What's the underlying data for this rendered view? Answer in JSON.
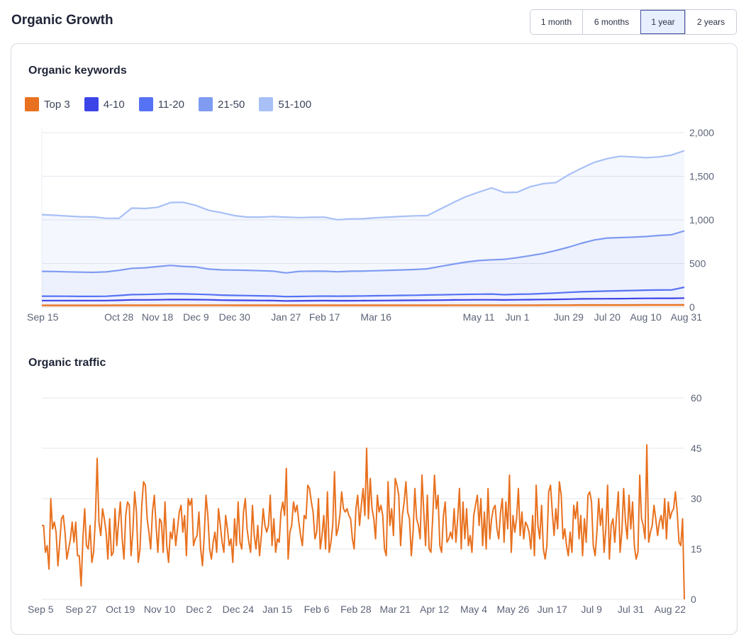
{
  "header": {
    "title": "Organic Growth"
  },
  "range": {
    "options": [
      "1 month",
      "6 months",
      "1 year",
      "2 years"
    ],
    "selected": "1 year"
  },
  "keywords": {
    "title": "Organic keywords",
    "legend": [
      {
        "label": "Top 3",
        "color": "#e8711f"
      },
      {
        "label": "4-10",
        "color": "#3c44e8"
      },
      {
        "label": "11-20",
        "color": "#5672f4"
      },
      {
        "label": "21-50",
        "color": "#7f9bf2"
      },
      {
        "label": "51-100",
        "color": "#a8c0f6"
      }
    ]
  },
  "traffic": {
    "title": "Organic traffic"
  },
  "colors": {
    "accent": "#e8711f",
    "selected_bg": "#e8efff",
    "grid": "#e4e7ee"
  },
  "chart_data": [
    {
      "type": "area",
      "title": "Organic keywords",
      "stacked": true,
      "y_axis_position": "right",
      "ylim": [
        0,
        2000
      ],
      "yticks": [
        0,
        500,
        1000,
        1500,
        2000
      ],
      "ytick_labels": [
        "0",
        "500",
        "1,000",
        "1,500",
        "2,000"
      ],
      "xtick_labels": [
        "Sep 15",
        "Oct 28",
        "Nov 18",
        "Dec 9",
        "Dec 30",
        "Jan 27",
        "Feb 17",
        "Mar 16",
        "May 11",
        "Jun 1",
        "Jun 29",
        "Jul 20",
        "Aug 10",
        "Aug 31"
      ],
      "xtick_index": [
        0,
        6,
        9,
        12,
        15,
        19,
        22,
        26,
        34,
        37,
        41,
        44,
        47,
        50
      ],
      "legend_position": "top-left",
      "grid": true,
      "x_count": 51,
      "series": [
        {
          "name": "Top 3",
          "color": "#e8711f",
          "values": [
            20,
            20,
            20,
            20,
            20,
            20,
            21,
            21,
            21,
            21,
            22,
            22,
            22,
            22,
            22,
            21,
            21,
            21,
            21,
            21,
            21,
            21,
            21,
            21,
            21,
            21,
            21,
            21,
            21,
            21,
            21,
            21,
            22,
            22,
            22,
            22,
            22,
            22,
            22,
            23,
            23,
            23,
            24,
            24,
            24,
            24,
            24,
            25,
            25,
            25,
            25
          ]
        },
        {
          "name": "4-10",
          "color": "#3c44e8",
          "values": [
            55,
            55,
            55,
            55,
            55,
            55,
            57,
            62,
            62,
            63,
            65,
            64,
            63,
            62,
            58,
            57,
            56,
            55,
            54,
            50,
            51,
            52,
            53,
            52,
            52,
            53,
            54,
            55,
            56,
            57,
            58,
            59,
            60,
            61,
            62,
            62,
            60,
            62,
            63,
            64,
            66,
            68,
            70,
            71,
            72,
            73,
            74,
            75,
            76,
            76,
            78
          ]
        },
        {
          "name": "11-20",
          "color": "#5672f4",
          "values": [
            50,
            50,
            49,
            48,
            48,
            49,
            55,
            60,
            62,
            65,
            66,
            65,
            63,
            60,
            57,
            56,
            55,
            53,
            52,
            49,
            50,
            51,
            52,
            52,
            53,
            54,
            55,
            56,
            57,
            58,
            60,
            61,
            62,
            63,
            64,
            66,
            60,
            63,
            65,
            68,
            72,
            78,
            82,
            85,
            88,
            90,
            92,
            94,
            95,
            96,
            125
          ]
        },
        {
          "name": "21-50",
          "color": "#7f9bf2",
          "values": [
            285,
            283,
            280,
            278,
            275,
            280,
            288,
            302,
            305,
            315,
            325,
            316,
            312,
            292,
            290,
            290,
            290,
            288,
            285,
            272,
            287,
            288,
            285,
            280,
            285,
            285,
            287,
            290,
            292,
            295,
            300,
            325,
            348,
            370,
            385,
            392,
            406,
            420,
            440,
            460,
            488,
            518,
            556,
            590,
            608,
            610,
            612,
            615,
            625,
            632,
            645
          ]
        },
        {
          "name": "51-100",
          "color": "#a8c0f6",
          "values": [
            650,
            645,
            640,
            635,
            635,
            615,
            597,
            690,
            680,
            680,
            720,
            735,
            705,
            673,
            655,
            625,
            610,
            615,
            626,
            640,
            617,
            617,
            620,
            597,
            600,
            600,
            607,
            610,
            614,
            615,
            610,
            657,
            705,
            750,
            785,
            825,
            765,
            750,
            790,
            800,
            779,
            830,
            860,
            890,
            910,
            932,
            920,
            904,
            900,
            914,
            920
          ]
        }
      ]
    },
    {
      "type": "line",
      "title": "Organic traffic",
      "y_axis_position": "right",
      "ylim": [
        0,
        60
      ],
      "yticks": [
        0,
        15,
        30,
        45,
        60
      ],
      "xtick_labels": [
        "Sep 5",
        "Sep 27",
        "Oct 19",
        "Nov 10",
        "Dec 2",
        "Dec 24",
        "Jan 15",
        "Feb 6",
        "Feb 28",
        "Mar 21",
        "Apr 12",
        "May 4",
        "May 26",
        "Jun 17",
        "Jul 9",
        "Jul 31",
        "Aug 22"
      ],
      "xtick_index": [
        0,
        22,
        44,
        66,
        88,
        110,
        132,
        154,
        176,
        198,
        220,
        242,
        264,
        286,
        308,
        330,
        352
      ],
      "grid": true,
      "series": [
        {
          "name": "Organic traffic",
          "color": "#e8711f",
          "values": [
            22,
            22,
            14,
            16,
            9,
            30,
            21,
            23,
            20,
            10,
            17,
            24,
            25,
            20,
            12,
            15,
            18,
            23,
            17,
            23,
            13,
            13,
            4,
            18,
            27,
            16,
            15,
            22,
            11,
            14,
            24,
            42,
            23,
            19,
            27,
            24,
            20,
            12,
            24,
            13,
            14,
            27,
            16,
            23,
            29,
            18,
            12,
            25,
            29,
            28,
            13,
            20,
            32,
            26,
            11,
            15,
            28,
            35,
            34,
            24,
            20,
            15,
            26,
            31,
            22,
            14,
            24,
            23,
            14,
            29,
            16,
            11,
            20,
            18,
            24,
            16,
            21,
            26,
            28,
            20,
            25,
            13,
            30,
            28,
            30,
            16,
            18,
            19,
            26,
            15,
            10,
            19,
            31,
            25,
            15,
            12,
            17,
            20,
            14,
            27,
            22,
            17,
            14,
            25,
            21,
            16,
            18,
            11,
            24,
            16,
            29,
            17,
            15,
            26,
            30,
            21,
            17,
            14,
            28,
            19,
            15,
            22,
            13,
            19,
            27,
            22,
            20,
            22,
            31,
            16,
            24,
            14,
            18,
            17,
            26,
            29,
            25,
            39,
            12,
            20,
            22,
            29,
            26,
            28,
            23,
            19,
            16,
            25,
            24,
            34,
            33,
            29,
            26,
            18,
            20,
            30,
            15,
            19,
            25,
            15,
            32,
            14,
            17,
            22,
            38,
            19,
            21,
            25,
            32,
            27,
            26,
            27,
            25,
            24,
            18,
            15,
            27,
            31,
            22,
            28,
            33,
            25,
            45,
            24,
            36,
            27,
            24,
            18,
            31,
            26,
            28,
            25,
            15,
            13,
            35,
            22,
            27,
            19,
            36,
            34,
            31,
            16,
            25,
            29,
            35,
            26,
            24,
            13,
            20,
            33,
            24,
            22,
            18,
            37,
            26,
            16,
            31,
            15,
            14,
            24,
            37,
            27,
            31,
            16,
            14,
            25,
            29,
            17,
            18,
            20,
            18,
            27,
            17,
            24,
            33,
            15,
            29,
            18,
            27,
            16,
            19,
            14,
            25,
            28,
            31,
            22,
            30,
            16,
            26,
            15,
            33,
            18,
            24,
            27,
            28,
            21,
            18,
            26,
            30,
            17,
            29,
            21,
            37,
            14,
            25,
            20,
            24,
            33,
            19,
            26,
            18,
            23,
            22,
            20,
            15,
            25,
            13,
            34,
            22,
            18,
            28,
            15,
            12,
            16,
            32,
            34,
            26,
            19,
            27,
            21,
            35,
            31,
            18,
            21,
            16,
            13,
            20,
            14,
            28,
            24,
            29,
            18,
            25,
            13,
            24,
            17,
            31,
            32,
            29,
            16,
            13,
            20,
            30,
            22,
            27,
            14,
            21,
            34,
            12,
            22,
            24,
            17,
            25,
            32,
            14,
            20,
            33,
            23,
            18,
            31,
            21,
            29,
            16,
            12,
            14,
            37,
            24,
            22,
            18,
            46,
            17,
            20,
            22,
            28,
            24,
            19,
            23,
            25,
            21,
            30,
            18,
            29,
            24,
            26,
            27,
            32,
            26,
            17,
            16,
            24,
            0
          ]
        }
      ]
    }
  ]
}
